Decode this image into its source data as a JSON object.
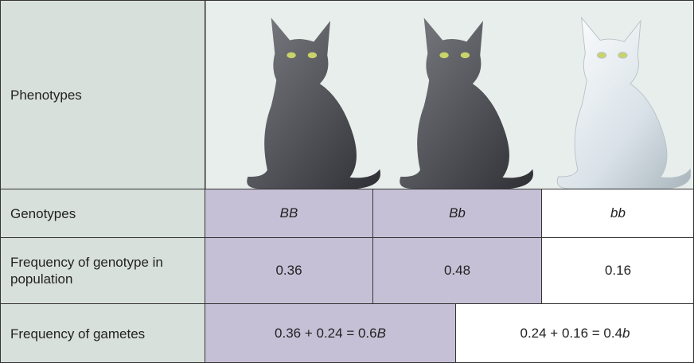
{
  "rows": {
    "phenotypes": {
      "label": "Phenotypes"
    },
    "genotypes": {
      "label": "Genotypes",
      "cells": [
        "BB",
        "Bb",
        "bb"
      ]
    },
    "genotype_frequency": {
      "label": "Frequency of genotype in population",
      "cells": [
        "0.36",
        "0.48",
        "0.16"
      ]
    },
    "gamete_frequency": {
      "label": "Frequency of gametes",
      "cells": [
        {
          "sum": "0.36 + 0.24 = 0.6",
          "allele": "B"
        },
        {
          "sum": "0.24 + 0.16 = 0.4",
          "allele": "b"
        }
      ]
    }
  }
}
